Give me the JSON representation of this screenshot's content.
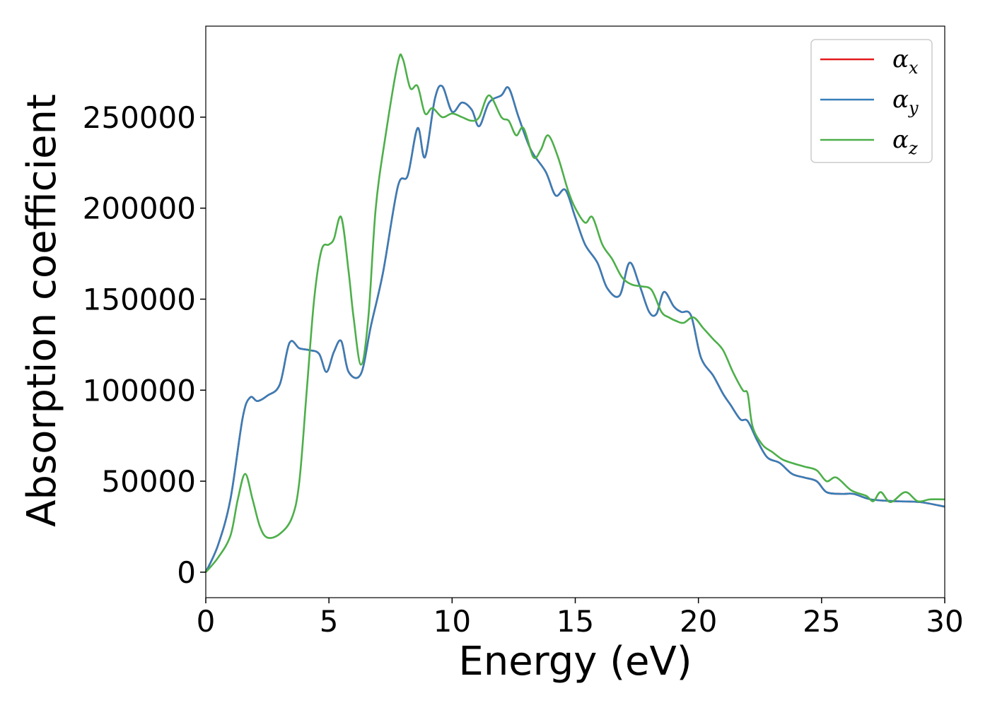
{
  "chart_data": {
    "type": "line",
    "xlabel": "Energy (eV)",
    "ylabel": "Absorption coefficient",
    "xlim": [
      0,
      30
    ],
    "ylim": [
      -14000,
      300000
    ],
    "xticks": [
      "0",
      "5",
      "10",
      "15",
      "20",
      "25",
      "30"
    ],
    "yticks": [
      "0",
      "50000",
      "100000",
      "150000",
      "200000",
      "250000"
    ],
    "grid": false,
    "legend_position": "top-right",
    "series": [
      {
        "name": "α",
        "subscript": "x",
        "color": "#e41a1c",
        "points": [
          [
            0,
            0
          ],
          [
            0.5,
            15000
          ],
          [
            1.0,
            40000
          ],
          [
            1.5,
            85000
          ],
          [
            1.8,
            96000
          ],
          [
            2.1,
            94000
          ],
          [
            2.5,
            97000
          ],
          [
            3.0,
            103000
          ],
          [
            3.4,
            126000
          ],
          [
            3.8,
            123000
          ],
          [
            4.2,
            122000
          ],
          [
            4.6,
            120000
          ],
          [
            4.9,
            110000
          ],
          [
            5.2,
            121000
          ],
          [
            5.5,
            127000
          ],
          [
            5.8,
            110000
          ],
          [
            6.3,
            109000
          ],
          [
            6.7,
            135000
          ],
          [
            7.2,
            165000
          ],
          [
            7.8,
            212000
          ],
          [
            8.2,
            218000
          ],
          [
            8.6,
            244000
          ],
          [
            8.9,
            228000
          ],
          [
            9.3,
            260000
          ],
          [
            9.6,
            267000
          ],
          [
            10.0,
            253000
          ],
          [
            10.4,
            258000
          ],
          [
            10.8,
            254000
          ],
          [
            11.1,
            245000
          ],
          [
            11.5,
            258000
          ],
          [
            12.0,
            262000
          ],
          [
            12.3,
            266000
          ],
          [
            12.7,
            250000
          ],
          [
            13.2,
            232000
          ],
          [
            13.8,
            220000
          ],
          [
            14.2,
            207000
          ],
          [
            14.6,
            210000
          ],
          [
            15.0,
            195000
          ],
          [
            15.4,
            180000
          ],
          [
            15.9,
            170000
          ],
          [
            16.3,
            156000
          ],
          [
            16.8,
            152000
          ],
          [
            17.2,
            170000
          ],
          [
            17.6,
            158000
          ],
          [
            18.0,
            143000
          ],
          [
            18.3,
            142000
          ],
          [
            18.6,
            154000
          ],
          [
            19.0,
            146000
          ],
          [
            19.3,
            143000
          ],
          [
            19.7,
            141000
          ],
          [
            20.1,
            118000
          ],
          [
            20.6,
            108000
          ],
          [
            21.0,
            98000
          ],
          [
            21.3,
            92000
          ],
          [
            21.7,
            84000
          ],
          [
            22.0,
            83000
          ],
          [
            22.4,
            72000
          ],
          [
            22.8,
            63000
          ],
          [
            23.3,
            60000
          ],
          [
            23.8,
            54000
          ],
          [
            24.3,
            52000
          ],
          [
            24.8,
            50000
          ],
          [
            25.2,
            44000
          ],
          [
            25.8,
            43000
          ],
          [
            26.3,
            43000
          ],
          [
            27.0,
            40000
          ],
          [
            28.0,
            39000
          ],
          [
            29.0,
            38500
          ],
          [
            30.0,
            36000
          ]
        ]
      },
      {
        "name": "α",
        "subscript": "y",
        "color": "#377eb8",
        "points": [
          [
            0,
            0
          ],
          [
            0.5,
            15000
          ],
          [
            1.0,
            40000
          ],
          [
            1.5,
            85000
          ],
          [
            1.8,
            96000
          ],
          [
            2.1,
            94000
          ],
          [
            2.5,
            97000
          ],
          [
            3.0,
            103000
          ],
          [
            3.4,
            126000
          ],
          [
            3.8,
            123000
          ],
          [
            4.2,
            122000
          ],
          [
            4.6,
            120000
          ],
          [
            4.9,
            110000
          ],
          [
            5.2,
            121000
          ],
          [
            5.5,
            127000
          ],
          [
            5.8,
            110000
          ],
          [
            6.3,
            109000
          ],
          [
            6.7,
            135000
          ],
          [
            7.2,
            165000
          ],
          [
            7.8,
            212000
          ],
          [
            8.2,
            218000
          ],
          [
            8.6,
            244000
          ],
          [
            8.9,
            228000
          ],
          [
            9.3,
            260000
          ],
          [
            9.6,
            267000
          ],
          [
            10.0,
            253000
          ],
          [
            10.4,
            258000
          ],
          [
            10.8,
            254000
          ],
          [
            11.1,
            245000
          ],
          [
            11.5,
            258000
          ],
          [
            12.0,
            262000
          ],
          [
            12.3,
            266000
          ],
          [
            12.7,
            250000
          ],
          [
            13.2,
            232000
          ],
          [
            13.8,
            220000
          ],
          [
            14.2,
            207000
          ],
          [
            14.6,
            210000
          ],
          [
            15.0,
            195000
          ],
          [
            15.4,
            180000
          ],
          [
            15.9,
            170000
          ],
          [
            16.3,
            156000
          ],
          [
            16.8,
            152000
          ],
          [
            17.2,
            170000
          ],
          [
            17.6,
            158000
          ],
          [
            18.0,
            143000
          ],
          [
            18.3,
            142000
          ],
          [
            18.6,
            154000
          ],
          [
            19.0,
            146000
          ],
          [
            19.3,
            143000
          ],
          [
            19.7,
            141000
          ],
          [
            20.1,
            118000
          ],
          [
            20.6,
            108000
          ],
          [
            21.0,
            98000
          ],
          [
            21.3,
            92000
          ],
          [
            21.7,
            84000
          ],
          [
            22.0,
            83000
          ],
          [
            22.4,
            72000
          ],
          [
            22.8,
            63000
          ],
          [
            23.3,
            60000
          ],
          [
            23.8,
            54000
          ],
          [
            24.3,
            52000
          ],
          [
            24.8,
            50000
          ],
          [
            25.2,
            44000
          ],
          [
            25.8,
            43000
          ],
          [
            26.3,
            43000
          ],
          [
            27.0,
            40000
          ],
          [
            28.0,
            39000
          ],
          [
            29.0,
            38500
          ],
          [
            30.0,
            36000
          ]
        ]
      },
      {
        "name": "α",
        "subscript": "z",
        "color": "#4daf4a",
        "points": [
          [
            0,
            0
          ],
          [
            0.5,
            8000
          ],
          [
            1.0,
            20000
          ],
          [
            1.3,
            40000
          ],
          [
            1.6,
            54000
          ],
          [
            1.9,
            40000
          ],
          [
            2.2,
            25000
          ],
          [
            2.5,
            19000
          ],
          [
            3.0,
            21000
          ],
          [
            3.5,
            30000
          ],
          [
            3.8,
            50000
          ],
          [
            4.1,
            100000
          ],
          [
            4.4,
            150000
          ],
          [
            4.7,
            177000
          ],
          [
            5.0,
            180000
          ],
          [
            5.2,
            183000
          ],
          [
            5.5,
            195000
          ],
          [
            5.8,
            165000
          ],
          [
            6.0,
            140000
          ],
          [
            6.3,
            114000
          ],
          [
            6.6,
            140000
          ],
          [
            6.9,
            200000
          ],
          [
            7.3,
            240000
          ],
          [
            7.8,
            280000
          ],
          [
            8.0,
            282000
          ],
          [
            8.3,
            266000
          ],
          [
            8.6,
            267000
          ],
          [
            8.9,
            252000
          ],
          [
            9.2,
            255000
          ],
          [
            9.6,
            250000
          ],
          [
            10.0,
            252000
          ],
          [
            10.4,
            250000
          ],
          [
            10.8,
            248000
          ],
          [
            11.1,
            250000
          ],
          [
            11.5,
            262000
          ],
          [
            12.0,
            250000
          ],
          [
            12.3,
            248000
          ],
          [
            12.6,
            240000
          ],
          [
            12.9,
            244000
          ],
          [
            13.3,
            228000
          ],
          [
            13.6,
            232000
          ],
          [
            13.9,
            240000
          ],
          [
            14.3,
            228000
          ],
          [
            14.7,
            210000
          ],
          [
            15.0,
            200000
          ],
          [
            15.4,
            192000
          ],
          [
            15.7,
            195000
          ],
          [
            16.1,
            180000
          ],
          [
            16.5,
            172000
          ],
          [
            16.9,
            162000
          ],
          [
            17.3,
            158000
          ],
          [
            17.7,
            157000
          ],
          [
            18.1,
            155000
          ],
          [
            18.5,
            143000
          ],
          [
            18.8,
            140000
          ],
          [
            19.1,
            138000
          ],
          [
            19.4,
            137000
          ],
          [
            19.8,
            140000
          ],
          [
            20.2,
            134000
          ],
          [
            20.6,
            128000
          ],
          [
            21.0,
            122000
          ],
          [
            21.4,
            110000
          ],
          [
            21.8,
            100000
          ],
          [
            22.0,
            98000
          ],
          [
            22.2,
            80000
          ],
          [
            22.6,
            70000
          ],
          [
            23.0,
            66000
          ],
          [
            23.4,
            62000
          ],
          [
            23.8,
            60000
          ],
          [
            24.3,
            58000
          ],
          [
            24.8,
            56000
          ],
          [
            25.2,
            50000
          ],
          [
            25.6,
            52000
          ],
          [
            26.2,
            45000
          ],
          [
            26.8,
            42000
          ],
          [
            27.1,
            39000
          ],
          [
            27.4,
            44000
          ],
          [
            27.8,
            38500
          ],
          [
            28.4,
            44000
          ],
          [
            28.9,
            39000
          ],
          [
            29.4,
            40000
          ],
          [
            30.0,
            40000
          ]
        ]
      }
    ]
  }
}
